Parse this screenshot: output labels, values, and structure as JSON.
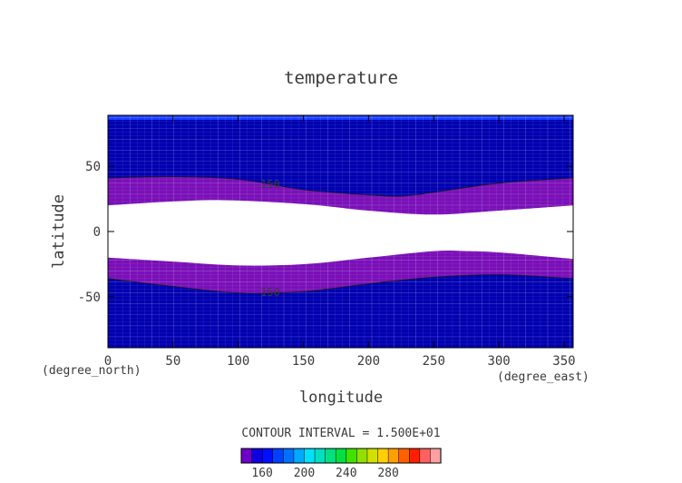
{
  "chart_data": {
    "type": "heatmap",
    "title": "temperature",
    "xlabel": "longitude",
    "ylabel": "latitude",
    "x_unit_label": "(degree_east)",
    "y_unit_label": "(degree_north)",
    "xlim": [
      0,
      357
    ],
    "ylim": [
      -89,
      89
    ],
    "x_ticks": [
      0,
      50,
      100,
      150,
      200,
      250,
      300,
      350
    ],
    "y_ticks": [
      50,
      0,
      -50
    ],
    "contour_interval_text": "CONTOUR INTERVAL = 1.500E+01",
    "contour_level_labels": [
      "150",
      "150"
    ],
    "regions": {
      "north_upper_boundary_lat": [
        [
          0,
          41
        ],
        [
          50,
          42
        ],
        [
          100,
          40
        ],
        [
          150,
          32
        ],
        [
          200,
          28
        ],
        [
          225,
          27
        ],
        [
          250,
          30
        ],
        [
          300,
          37
        ],
        [
          357,
          41
        ]
      ],
      "north_lower_boundary_lat": [
        [
          0,
          20
        ],
        [
          50,
          23
        ],
        [
          90,
          24
        ],
        [
          150,
          21
        ],
        [
          200,
          16
        ],
        [
          250,
          13
        ],
        [
          300,
          16
        ],
        [
          357,
          20
        ]
      ],
      "south_upper_boundary_lat": [
        [
          0,
          -20
        ],
        [
          50,
          -23
        ],
        [
          100,
          -26
        ],
        [
          150,
          -25
        ],
        [
          200,
          -20
        ],
        [
          250,
          -15
        ],
        [
          275,
          -15
        ],
        [
          300,
          -16
        ],
        [
          357,
          -21
        ]
      ],
      "south_lower_boundary_lat": [
        [
          0,
          -36
        ],
        [
          50,
          -42
        ],
        [
          100,
          -47
        ],
        [
          150,
          -46
        ],
        [
          200,
          -40
        ],
        [
          250,
          -35
        ],
        [
          300,
          -33
        ],
        [
          357,
          -36
        ]
      ]
    },
    "colorbar": {
      "tick_labels": [
        "160",
        "200",
        "240",
        "280"
      ],
      "colors": [
        "#6e00c8",
        "#1000e0",
        "#0010ff",
        "#0040ff",
        "#0070ff",
        "#00a8ff",
        "#00e0ff",
        "#00e0c0",
        "#00e080",
        "#00e040",
        "#40e000",
        "#90e000",
        "#d0e000",
        "#ffd000",
        "#ffa000",
        "#ff6000",
        "#ff2000",
        "#ff6060",
        "#ffa0a0"
      ]
    },
    "colors": {
      "band_purple": "#7a0fb8",
      "region_blue": "#0000b0",
      "polar_blue": "#1a3cff"
    },
    "grid": true,
    "legend": "bottom"
  }
}
